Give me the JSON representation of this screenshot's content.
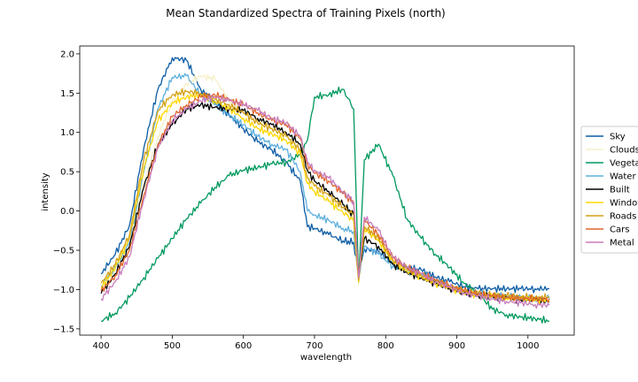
{
  "chart_data": {
    "type": "line",
    "title": "Mean Standardized Spectra of Training Pixels (north)",
    "xlabel": "wavelength",
    "ylabel": "intensity",
    "xlim": [
      370,
      1065
    ],
    "ylim": [
      -1.58,
      2.1
    ],
    "xticks": [
      400,
      500,
      600,
      700,
      800,
      900,
      1000
    ],
    "yticks": [
      -1.5,
      -1.0,
      -0.5,
      0.0,
      0.5,
      1.0,
      1.5,
      2.0
    ],
    "ytick_labels": [
      "−1.5",
      "−1.0",
      "−0.5",
      "0.0",
      "0.5",
      "1.0",
      "1.5",
      "2.0"
    ],
    "legend_position": "right",
    "grid": false,
    "x": [
      400,
      420,
      440,
      460,
      480,
      500,
      520,
      540,
      560,
      580,
      600,
      620,
      640,
      660,
      680,
      690,
      700,
      720,
      740,
      755,
      762,
      770,
      790,
      810,
      830,
      850,
      870,
      890,
      910,
      930,
      950,
      970,
      990,
      1010,
      1030
    ],
    "series": [
      {
        "name": "Sky",
        "color": "#0c5da5",
        "values": [
          -0.8,
          -0.55,
          -0.18,
          0.8,
          1.55,
          1.95,
          1.92,
          1.55,
          1.38,
          1.22,
          1.05,
          0.88,
          0.78,
          0.62,
          0.38,
          -0.2,
          -0.22,
          -0.3,
          -0.38,
          -0.4,
          -0.8,
          -0.48,
          -0.52,
          -0.66,
          -0.72,
          -0.75,
          -0.84,
          -0.9,
          -0.96,
          -0.99,
          -0.99,
          -0.99,
          -0.99,
          -0.99,
          -0.99
        ]
      },
      {
        "name": "Clouds",
        "color": "#f5f0c8",
        "values": [
          -1.0,
          -0.75,
          -0.45,
          0.35,
          0.95,
          1.4,
          1.62,
          1.72,
          1.68,
          1.4,
          1.25,
          1.15,
          1.05,
          0.95,
          0.8,
          0.4,
          0.3,
          0.15,
          0.02,
          -0.1,
          -0.95,
          -0.18,
          -0.35,
          -0.65,
          -0.78,
          -0.85,
          -0.92,
          -0.98,
          -1.02,
          -1.04,
          -1.05,
          -1.07,
          -1.09,
          -1.1,
          -1.1
        ]
      },
      {
        "name": "Vegetation",
        "color": "#00995e",
        "values": [
          -1.4,
          -1.3,
          -1.1,
          -0.85,
          -0.6,
          -0.35,
          -0.1,
          0.1,
          0.3,
          0.45,
          0.52,
          0.55,
          0.6,
          0.62,
          0.72,
          0.9,
          1.45,
          1.48,
          1.55,
          1.3,
          -0.9,
          0.65,
          0.85,
          0.45,
          -0.1,
          -0.35,
          -0.55,
          -0.72,
          -0.92,
          -1.05,
          -1.25,
          -1.32,
          -1.35,
          -1.37,
          -1.4
        ]
      },
      {
        "name": "Water",
        "color": "#5eb0dc",
        "values": [
          -0.95,
          -0.72,
          -0.4,
          0.5,
          1.3,
          1.7,
          1.72,
          1.48,
          1.35,
          1.22,
          1.1,
          0.95,
          0.85,
          0.78,
          0.5,
          0.0,
          -0.05,
          -0.12,
          -0.22,
          -0.26,
          -0.85,
          -0.45,
          -0.55,
          -0.7,
          -0.76,
          -0.8,
          -0.88,
          -0.96,
          -1.02,
          -1.05,
          -1.07,
          -1.08,
          -1.1,
          -1.12,
          -1.12
        ]
      },
      {
        "name": "Built",
        "color": "#000000",
        "values": [
          -1.05,
          -0.8,
          -0.45,
          0.3,
          0.85,
          1.1,
          1.3,
          1.35,
          1.32,
          1.3,
          1.28,
          1.18,
          1.1,
          1.0,
          0.85,
          0.52,
          0.38,
          0.25,
          0.08,
          -0.05,
          -0.85,
          -0.35,
          -0.45,
          -0.68,
          -0.78,
          -0.85,
          -0.92,
          -0.98,
          -1.04,
          -1.07,
          -1.09,
          -1.11,
          -1.13,
          -1.14,
          -1.15
        ]
      },
      {
        "name": "Windows",
        "color": "#ffd700",
        "values": [
          -0.98,
          -0.72,
          -0.35,
          0.55,
          1.15,
          1.38,
          1.45,
          1.48,
          1.4,
          1.3,
          1.18,
          1.05,
          0.98,
          0.9,
          0.72,
          0.35,
          0.25,
          0.12,
          -0.02,
          -0.12,
          -0.9,
          -0.22,
          -0.38,
          -0.64,
          -0.76,
          -0.84,
          -0.92,
          -0.98,
          -1.04,
          -1.07,
          -1.09,
          -1.11,
          -1.12,
          -1.13,
          -1.14
        ]
      },
      {
        "name": "Roads",
        "color": "#d4a017",
        "values": [
          -0.92,
          -0.68,
          -0.3,
          0.65,
          1.28,
          1.48,
          1.52,
          1.5,
          1.42,
          1.35,
          1.25,
          1.12,
          1.05,
          0.95,
          0.78,
          0.42,
          0.32,
          0.2,
          0.05,
          -0.05,
          -0.88,
          -0.2,
          -0.35,
          -0.62,
          -0.74,
          -0.82,
          -0.9,
          -0.96,
          -1.02,
          -1.05,
          -1.07,
          -1.08,
          -1.09,
          -1.1,
          -1.1
        ]
      },
      {
        "name": "Cars",
        "color": "#e0662a",
        "values": [
          -1.02,
          -0.82,
          -0.5,
          0.2,
          0.85,
          1.2,
          1.35,
          1.45,
          1.48,
          1.42,
          1.35,
          1.25,
          1.15,
          1.1,
          0.92,
          0.6,
          0.48,
          0.38,
          0.22,
          0.1,
          -0.85,
          -0.12,
          -0.3,
          -0.6,
          -0.72,
          -0.8,
          -0.88,
          -0.95,
          -1.02,
          -1.05,
          -1.08,
          -1.1,
          -1.11,
          -1.12,
          -1.12
        ]
      },
      {
        "name": "Metal",
        "color": "#c77cba",
        "values": [
          -1.12,
          -0.9,
          -0.58,
          0.15,
          0.8,
          1.15,
          1.3,
          1.4,
          1.45,
          1.4,
          1.36,
          1.28,
          1.18,
          1.12,
          0.95,
          0.62,
          0.52,
          0.42,
          0.25,
          0.12,
          -0.85,
          -0.08,
          -0.25,
          -0.58,
          -0.72,
          -0.8,
          -0.9,
          -0.97,
          -1.04,
          -1.08,
          -1.12,
          -1.15,
          -1.17,
          -1.19,
          -1.2
        ]
      }
    ]
  }
}
